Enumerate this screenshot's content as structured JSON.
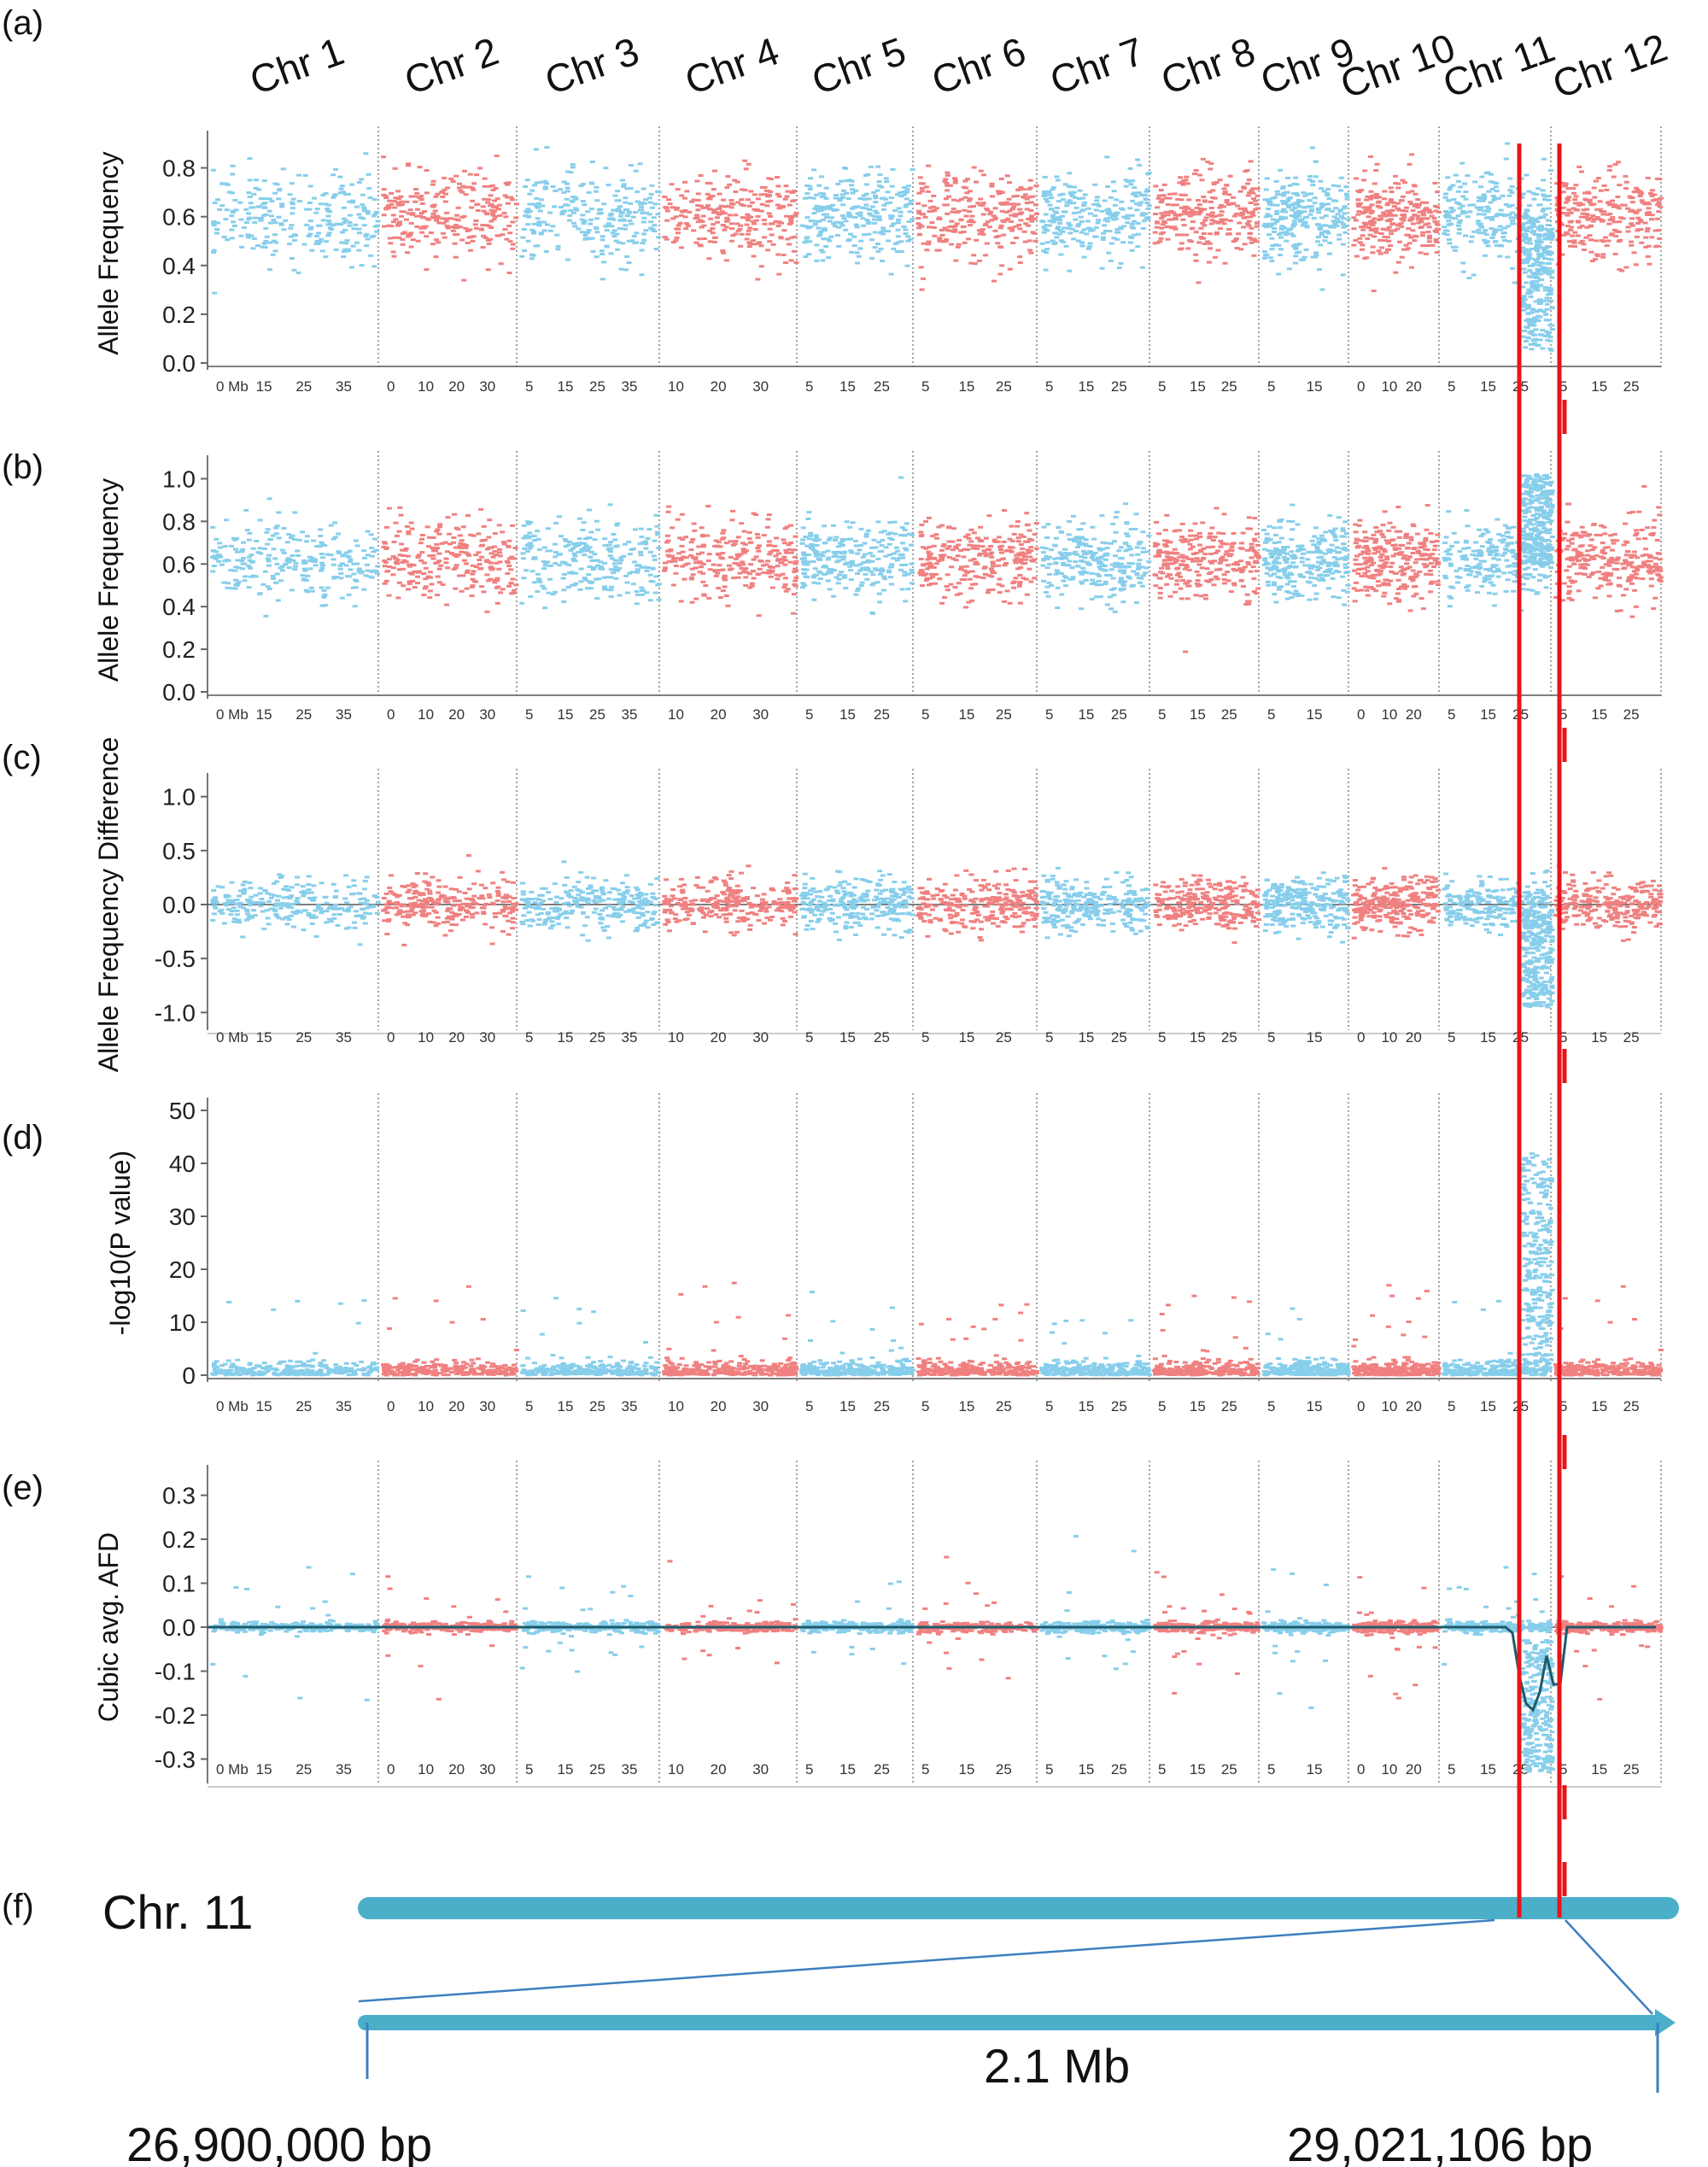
{
  "figure": {
    "panel_labels": [
      "(a)",
      "(b)",
      "(c)",
      "(d)",
      "(e)",
      "(f)"
    ],
    "chromosomes": [
      "Chr 1",
      "Chr 2",
      "Chr 3",
      "Chr 4",
      "Chr 5",
      "Chr 6",
      "Chr 7",
      "Chr 8",
      "Chr 9",
      "Chr 10",
      "Chr 11",
      "Chr 12"
    ],
    "chromosome_colors": [
      "#87ceeb",
      "#f08080",
      "#87ceeb",
      "#f08080",
      "#87ceeb",
      "#f08080",
      "#87ceeb",
      "#f08080",
      "#87ceeb",
      "#f08080",
      "#87ceeb",
      "#f08080"
    ],
    "x_ticks_per_chr": [
      [
        "0 Mb",
        "15",
        "25",
        "35"
      ],
      [
        "0",
        "10",
        "20",
        "30"
      ],
      [
        "5",
        "15",
        "25",
        "35"
      ],
      [
        "10",
        "20",
        "30"
      ],
      [
        "5",
        "15",
        "25"
      ],
      [
        "5",
        "15",
        "25"
      ],
      [
        "5",
        "15",
        "25"
      ],
      [
        "5",
        "15",
        "25"
      ],
      [
        "5",
        "15"
      ],
      [
        "0",
        "10",
        "20"
      ],
      [
        "5",
        "15",
        "25"
      ],
      [
        "5",
        "15",
        "25"
      ]
    ],
    "highlight_color": "#e8141b"
  },
  "chart_data": [
    {
      "panel": "(a)",
      "type": "scatter",
      "ylabel": "Allele Frequency",
      "ylim": [
        0.0,
        0.9
      ],
      "yticks": [
        "0.0",
        "0.2",
        "0.4",
        "0.6",
        "0.8"
      ],
      "baseline": 0.6,
      "chr_sizes_mb": [
        43,
        36,
        37,
        36,
        30,
        31,
        30,
        29,
        23,
        23,
        29,
        27
      ],
      "notes": "Chr 11 drops to ~0.05 at 26.9-29 Mb"
    },
    {
      "panel": "(b)",
      "type": "scatter",
      "ylabel": "Allele Frequency",
      "ylim": [
        0.0,
        1.05
      ],
      "yticks": [
        "0.0",
        "0.2",
        "0.4",
        "0.6",
        "0.8",
        "1.0"
      ],
      "baseline": 0.62,
      "notes": "Chr 11 rises to ~1.0 at 26.9-29 Mb"
    },
    {
      "panel": "(c)",
      "type": "scatter",
      "ylabel": "Allele Frequency Difference",
      "ylim": [
        -1.1,
        1.1
      ],
      "yticks": [
        "-1.0",
        "-0.5",
        "0.0",
        "0.5",
        "1.0"
      ],
      "baseline": 0.0,
      "notes": "Chr 11 minimum ~-0.95 in candidate region"
    },
    {
      "panel": "(d)",
      "type": "scatter",
      "ylabel": "-log10(P value)",
      "ylim": [
        0,
        50
      ],
      "yticks": [
        "0",
        "10",
        "20",
        "30",
        "40",
        "50"
      ],
      "baseline": 1,
      "notes": "Chr 11 peak ~42 in candidate region"
    },
    {
      "panel": "(e)",
      "type": "scatter",
      "ylabel": "Cubic avg. AFD",
      "ylim": [
        -0.34,
        0.34
      ],
      "yticks": [
        "0.3",
        "0.2",
        "0.1",
        "0.0",
        "-0.1",
        "-0.2",
        "-0.3"
      ],
      "baseline": 0.0,
      "notes": "Chr 11 trough ~-0.19 (line), points to ~-0.33"
    }
  ],
  "zoom": {
    "chr_label": "Chr. 11",
    "span_label": "2.1 Mb",
    "start_label": "26,900,000 bp",
    "end_label": "29,021,106 bp",
    "bar_color": "#4bafc9",
    "line_color": "#3d7fbf"
  }
}
